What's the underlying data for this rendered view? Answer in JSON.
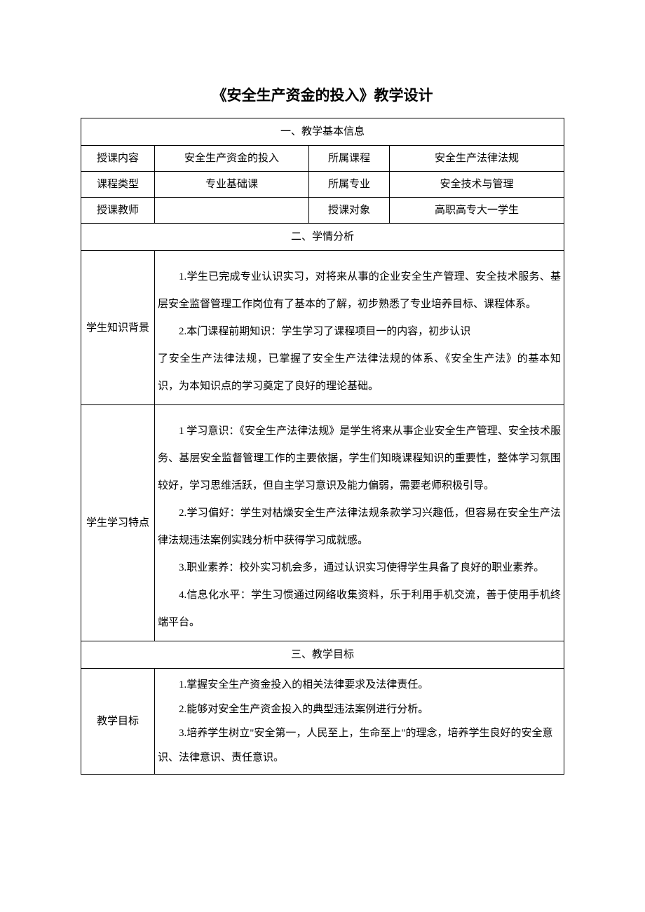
{
  "title": "《安全生产资金的投入》教学设计",
  "section1": {
    "header": "一、教学基本信息",
    "rows": [
      {
        "label": "授课内容",
        "value": "安全生产资金的投入",
        "label2": "所属课程",
        "value2": "安全生产法律法规"
      },
      {
        "label": "课程类型",
        "value": "专业基础课",
        "label2": "所属专业",
        "value2": "安全技术与管理"
      },
      {
        "label": "授课教师",
        "value": "",
        "label2": "授课对象",
        "value2": "高职高专大一学生"
      }
    ]
  },
  "section2": {
    "header": "二、学情分析",
    "background": {
      "label": "学生知识背景",
      "p1": "1.学生已完成专业认识实习，对将来从事的企业安全生产管理、安全技术服务、基层安全监督管理工作岗位有了基本的了解，初步熟悉了专业培养目标、课程体系。",
      "p2a": "2.本门课程前期知识：学生学习了课程项目一的内容，初步认识",
      "p2b": "了安全生产法律法规，已掌握了安全生产法律法规的体系、《安全生产法》的基本知识，为本知识点的学习奠定了良好的理论基础。"
    },
    "characteristics": {
      "label": "学生学习特点",
      "p1": "1 学习意识：《安全生产法律法规》是学生将来从事企业安全生产管理、安全技术服务、基层安全监督管理工作的主要依据，学生们知晓课程知识的重要性，整体学习氛围较好，学习思维活跃，但自主学习意识及能力偏弱，需要老师积极引导。",
      "p2": "2.学习偏好：学生对枯燥安全生产法律法规条款学习兴趣低，但容易在安全生产法律法规违法案例实践分析中获得学习成就感。",
      "p3": "3.职业素养：校外实习机会多，通过认识实习使得学生具备了良好的职业素养。",
      "p4": "4.信息化水平：学生习惯通过网络收集资料，乐于利用手机交流，善于使用手机终端平台。"
    }
  },
  "section3": {
    "header": "三、教学目标",
    "goals": {
      "label": "教学目标",
      "p1": "1.掌握安全生产资金投入的相关法律要求及法律责任。",
      "p2": "2.能够对安全生产资金投入的典型违法案例进行分析。",
      "p3": "3.培养学生树立\"安全第一，人民至上，生命至上\"的理念，培养学生良好的安全意识、法律意识、责任意识。"
    }
  }
}
